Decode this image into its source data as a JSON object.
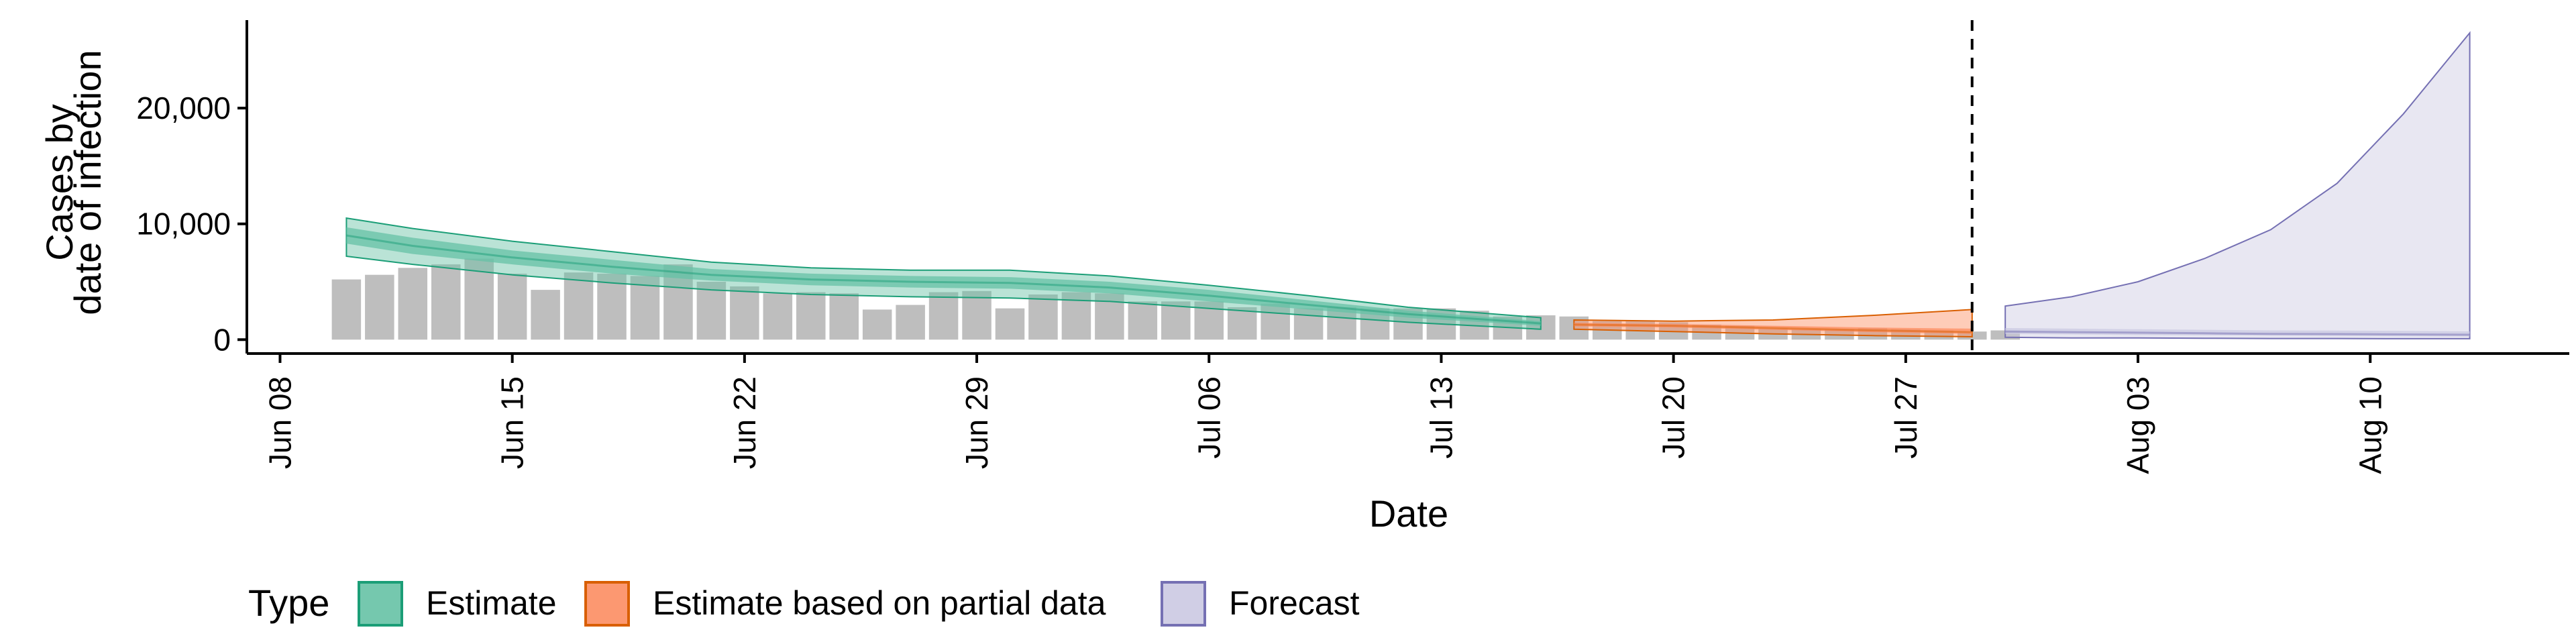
{
  "chart_data": {
    "type": "bar",
    "title": "",
    "xlabel": "Date",
    "ylabel": [
      "Cases by",
      "date of infection"
    ],
    "x_ticks": [
      {
        "date": "2020-06-08",
        "label": "Jun 08"
      },
      {
        "date": "2020-06-15",
        "label": "Jun 15"
      },
      {
        "date": "2020-06-22",
        "label": "Jun 22"
      },
      {
        "date": "2020-06-29",
        "label": "Jun 29"
      },
      {
        "date": "2020-07-06",
        "label": "Jul 06"
      },
      {
        "date": "2020-07-13",
        "label": "Jul 13"
      },
      {
        "date": "2020-07-20",
        "label": "Jul 20"
      },
      {
        "date": "2020-07-27",
        "label": "Jul 27"
      },
      {
        "date": "2020-08-03",
        "label": "Aug 03"
      },
      {
        "date": "2020-08-10",
        "label": "Aug 10"
      }
    ],
    "y_ticks": [
      {
        "value": 0,
        "label": "0"
      },
      {
        "value": 10000,
        "label": "10,000"
      },
      {
        "value": 20000,
        "label": "20,000"
      }
    ],
    "xlim": [
      "2020-06-07",
      "2020-08-16"
    ],
    "ylim": [
      -1200,
      27600
    ],
    "vline_date": "2020-07-29",
    "bar_color": "#bebebe",
    "bars": {
      "start_date": "2020-06-10",
      "values": [
        5200,
        5600,
        6200,
        6500,
        7000,
        5700,
        4300,
        5800,
        5700,
        5500,
        6500,
        5000,
        4600,
        4000,
        4100,
        4000,
        2600,
        3000,
        4100,
        4200,
        2700,
        3900,
        4100,
        4000,
        3300,
        3300,
        3300,
        2800,
        3100,
        2700,
        2800,
        2700,
        2700,
        2700,
        2500,
        2000,
        2100,
        2000,
        1600,
        1600,
        1500,
        1300,
        1200,
        1000,
        900,
        900,
        1000,
        900,
        800,
        700,
        800
      ]
    },
    "series": [
      {
        "name": "Estimate",
        "color": "#1b9e77",
        "fill": "#66c2a5",
        "dates": [
          "2020-06-10",
          "2020-06-12",
          "2020-06-15",
          "2020-06-18",
          "2020-06-21",
          "2020-06-24",
          "2020-06-27",
          "2020-06-30",
          "2020-07-03",
          "2020-07-06",
          "2020-07-09",
          "2020-07-12",
          "2020-07-16"
        ],
        "median": [
          9000,
          8100,
          7100,
          6300,
          5600,
          5200,
          5000,
          4900,
          4500,
          3800,
          3000,
          2200,
          1400
        ],
        "inner_lower": [
          8300,
          7400,
          6500,
          5700,
          5100,
          4700,
          4500,
          4400,
          4000,
          3300,
          2600,
          1900,
          1200
        ],
        "inner_upper": [
          9700,
          8800,
          7700,
          6900,
          6100,
          5700,
          5500,
          5400,
          5000,
          4300,
          3400,
          2500,
          1600
        ],
        "outer_lower": [
          7200,
          6500,
          5600,
          4900,
          4300,
          3900,
          3700,
          3600,
          3300,
          2700,
          2100,
          1500,
          900
        ],
        "outer_upper": [
          10500,
          9600,
          8500,
          7600,
          6700,
          6200,
          6000,
          6000,
          5500,
          4700,
          3800,
          2800,
          1900
        ]
      },
      {
        "name": "Estimate based on partial data",
        "color": "#d95f02",
        "fill": "#fc8d62",
        "dates": [
          "2020-07-17",
          "2020-07-20",
          "2020-07-23",
          "2020-07-26",
          "2020-07-29"
        ],
        "median": [
          1300,
          1200,
          1000,
          800,
          650
        ],
        "inner_lower": [
          1150,
          1050,
          850,
          650,
          500
        ],
        "inner_upper": [
          1450,
          1350,
          1200,
          1050,
          950
        ],
        "outer_lower": [
          900,
          700,
          500,
          350,
          250
        ],
        "outer_upper": [
          1700,
          1600,
          1700,
          2100,
          2600
        ]
      },
      {
        "name": "Forecast",
        "color": "#7570b3",
        "fill": "#cbc9e2",
        "dates": [
          "2020-07-30",
          "2020-08-01",
          "2020-08-03",
          "2020-08-05",
          "2020-08-07",
          "2020-08-09",
          "2020-08-11",
          "2020-08-13"
        ],
        "median": [
          700,
          650,
          600,
          550,
          500,
          480,
          450,
          420
        ],
        "inner_lower": [
          500,
          450,
          400,
          380,
          350,
          330,
          300,
          280
        ],
        "inner_upper": [
          1000,
          950,
          900,
          850,
          800,
          780,
          750,
          720
        ],
        "outer_lower": [
          200,
          150,
          150,
          120,
          100,
          100,
          80,
          80
        ],
        "outer_upper": [
          2900,
          3700,
          5000,
          7000,
          9500,
          13500,
          19500,
          26500
        ]
      }
    ],
    "legend": {
      "title": "Type",
      "position": "bottom",
      "items": [
        {
          "label": "Estimate",
          "fill": "#66c2a5",
          "stroke": "#1b9e77"
        },
        {
          "label": "Estimate based on partial data",
          "fill": "#fc8d62",
          "stroke": "#d95f02"
        },
        {
          "label": "Forecast",
          "fill": "#cbc9e2",
          "stroke": "#7570b3"
        }
      ]
    }
  }
}
